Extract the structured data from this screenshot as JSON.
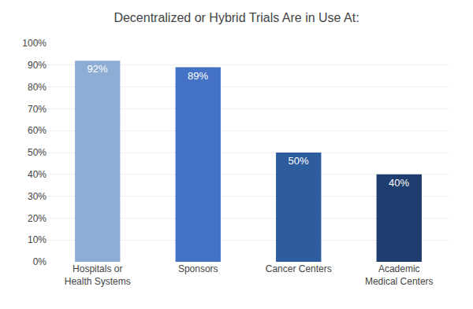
{
  "chart_data": {
    "type": "bar",
    "title": "Decentralized or Hybrid Trials Are in Use At:",
    "categories": [
      "Hospitals or\nHealth Systems",
      "Sponsors",
      "Cancer Centers",
      "Academic\nMedical Centers"
    ],
    "values": [
      92,
      89,
      50,
      40
    ],
    "value_labels": [
      "92%",
      "89%",
      "50%",
      "40%"
    ],
    "data_labels": true,
    "colors": [
      "#8eadd4",
      "#4472c4",
      "#2e5d9e",
      "#1f3d6e"
    ],
    "ylim": [
      0,
      100
    ],
    "yticks": [
      {
        "value": 0,
        "label": "0%"
      },
      {
        "value": 10,
        "label": "10%"
      },
      {
        "value": 20,
        "label": "20%"
      },
      {
        "value": 30,
        "label": "30%"
      },
      {
        "value": 40,
        "label": "40%"
      },
      {
        "value": 50,
        "label": "50%"
      },
      {
        "value": 60,
        "label": "60%"
      },
      {
        "value": 70,
        "label": "70%"
      },
      {
        "value": 80,
        "label": "80%"
      },
      {
        "value": 90,
        "label": "90%"
      },
      {
        "value": 100,
        "label": "100%"
      }
    ],
    "grid": true
  }
}
